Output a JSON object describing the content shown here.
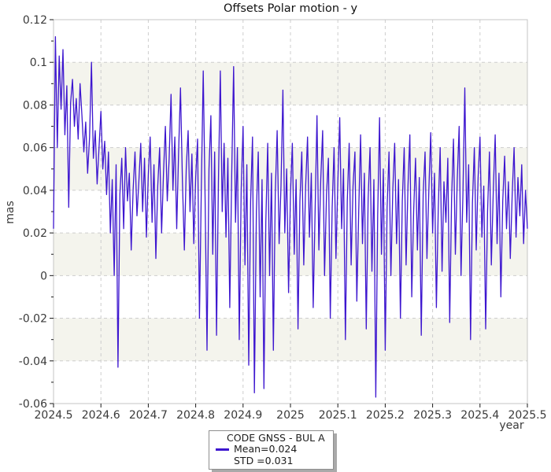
{
  "figure": {
    "title": "Offsets Polar motion - y"
  },
  "legend": {
    "title": "CODE GNSS - BUL A",
    "mean_label": "Mean=0.024",
    "std_label": "STD =0.031"
  },
  "chart_data": {
    "type": "line",
    "title": "Offsets Polar motion - y",
    "xlabel": "year",
    "ylabel": "mas",
    "xlim": [
      2024.5,
      2025.5
    ],
    "ylim": [
      -0.06,
      0.12
    ],
    "grid": {
      "on": true,
      "color": "#cdcdcd",
      "dash": "4 4"
    },
    "spine_color": "#c4c4c4",
    "tick_color": "#1a1a1a",
    "band_color": "#f4f4ed",
    "bands": [
      [
        0.1,
        0.08
      ],
      [
        0.06,
        0.04
      ],
      [
        0.02,
        0.0
      ],
      [
        -0.02,
        -0.04
      ]
    ],
    "xtick_values": [
      2024.5,
      2024.6,
      2024.7,
      2024.8,
      2024.9,
      2025.0,
      2025.1,
      2025.2,
      2025.3,
      2025.4,
      2025.5
    ],
    "xtick_labels": [
      "2024.5",
      "2024.6",
      "2024.7",
      "2024.8",
      "2024.9",
      "2025",
      "2025.1",
      "2025.2",
      "2025.3",
      "2025.4",
      "2025.5"
    ],
    "ytick_values": [
      -0.06,
      -0.04,
      -0.02,
      0,
      0.02,
      0.04,
      0.06,
      0.08,
      0.1,
      0.12
    ],
    "ytick_labels": [
      "-0.06",
      "-0.04",
      "-0.02",
      "0",
      "0.02",
      "0.04",
      "0.06",
      "0.08",
      "0.1",
      "0.12"
    ],
    "legend_position": "bottom-center-outside",
    "series": [
      {
        "name": "CODE GNSS - BUL A",
        "color": "#3d16cf",
        "mean": 0.024,
        "std": 0.031,
        "x_start": 2024.5,
        "x_step": 0.004,
        "values": [
          0.022,
          0.112,
          0.06,
          0.103,
          0.078,
          0.106,
          0.066,
          0.089,
          0.032,
          0.081,
          0.092,
          0.07,
          0.083,
          0.064,
          0.09,
          0.075,
          0.058,
          0.072,
          0.048,
          0.065,
          0.1,
          0.055,
          0.068,
          0.043,
          0.06,
          0.077,
          0.05,
          0.063,
          0.038,
          0.058,
          0.02,
          0.045,
          0.0,
          0.052,
          -0.043,
          0.038,
          0.055,
          0.022,
          0.06,
          0.035,
          0.048,
          0.012,
          0.04,
          0.058,
          0.028,
          0.044,
          0.062,
          0.03,
          0.055,
          0.018,
          0.047,
          0.065,
          0.025,
          0.052,
          0.008,
          0.042,
          0.06,
          0.02,
          0.048,
          0.07,
          0.035,
          0.055,
          0.085,
          0.04,
          0.065,
          0.022,
          0.058,
          0.088,
          0.045,
          0.012,
          0.05,
          0.068,
          0.03,
          0.057,
          0.015,
          0.046,
          0.064,
          -0.02,
          0.042,
          0.096,
          0.035,
          -0.035,
          0.05,
          0.075,
          0.01,
          0.058,
          -0.028,
          0.044,
          0.096,
          0.03,
          0.062,
          0.018,
          0.055,
          -0.015,
          0.048,
          0.098,
          0.025,
          0.06,
          -0.03,
          0.04,
          0.07,
          0.005,
          0.052,
          -0.042,
          0.035,
          0.065,
          -0.055,
          0.03,
          0.058,
          -0.01,
          0.045,
          -0.053,
          0.025,
          0.062,
          0.0,
          0.048,
          -0.035,
          0.038,
          0.068,
          0.015,
          0.042,
          0.087,
          0.02,
          0.05,
          -0.008,
          0.038,
          0.062,
          0.01,
          0.045,
          -0.025,
          0.035,
          0.058,
          0.005,
          0.042,
          0.065,
          0.018,
          0.048,
          -0.015,
          0.03,
          0.075,
          0.012,
          0.045,
          0.068,
          0.0,
          0.038,
          0.055,
          -0.02,
          0.032,
          0.06,
          0.008,
          0.044,
          0.074,
          0.022,
          0.05,
          -0.03,
          0.035,
          0.062,
          0.005,
          0.042,
          0.058,
          -0.012,
          0.03,
          0.066,
          0.015,
          0.048,
          -0.025,
          0.036,
          0.06,
          0.002,
          0.045,
          -0.057,
          0.028,
          0.074,
          0.01,
          0.05,
          -0.035,
          0.032,
          0.058,
          0.0,
          0.04,
          0.062,
          0.015,
          0.045,
          -0.02,
          0.035,
          0.06,
          0.005,
          0.042,
          0.066,
          -0.01,
          0.03,
          0.055,
          0.012,
          0.046,
          -0.028,
          0.038,
          0.058,
          0.008,
          0.04,
          0.067,
          0.02,
          0.048,
          -0.015,
          0.032,
          0.06,
          0.002,
          0.044,
          0.025,
          0.055,
          -0.022,
          0.036,
          0.064,
          0.01,
          0.045,
          0.07,
          0.0,
          0.038,
          0.088,
          0.025,
          0.052,
          -0.03,
          0.034,
          0.06,
          0.012,
          0.046,
          0.065,
          0.018,
          0.042,
          -0.025,
          0.03,
          0.058,
          0.005,
          0.04,
          0.066,
          0.015,
          0.048,
          -0.01,
          0.035,
          0.056,
          0.022,
          0.044,
          0.008,
          0.038,
          0.06,
          0.018,
          0.046,
          0.028,
          0.052,
          0.015,
          0.04,
          0.022
        ]
      }
    ]
  }
}
